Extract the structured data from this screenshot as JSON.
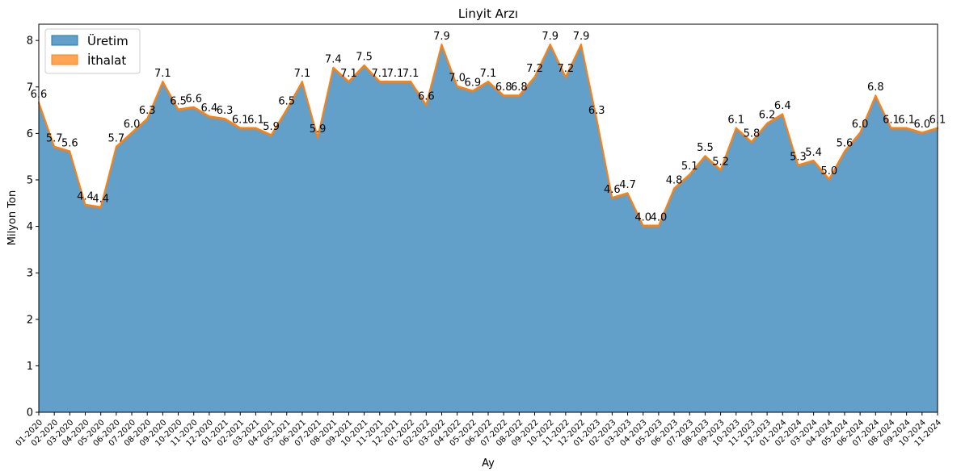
{
  "chart_data": {
    "type": "area",
    "title": "Linyit Arzı",
    "xlabel": "Ay",
    "ylabel": "Milyon Ton",
    "ylim": [
      0,
      8.35
    ],
    "yticks": [
      0,
      1,
      2,
      3,
      4,
      5,
      6,
      7,
      8
    ],
    "stacked": true,
    "grid": false,
    "legend_position": "upper-left",
    "categories": [
      "01-2020",
      "02-2020",
      "03-2020",
      "04-2020",
      "05-2020",
      "06-2020",
      "07-2020",
      "08-2020",
      "09-2020",
      "10-2020",
      "11-2020",
      "12-2020",
      "01-2021",
      "02-2021",
      "03-2021",
      "04-2021",
      "05-2021",
      "06-2021",
      "07-2021",
      "08-2021",
      "09-2021",
      "10-2021",
      "11-2021",
      "12-2021",
      "01-2022",
      "02-2022",
      "03-2022",
      "04-2022",
      "05-2022",
      "06-2022",
      "07-2022",
      "08-2022",
      "09-2022",
      "10-2022",
      "11-2022",
      "12-2022",
      "01-2023",
      "02-2023",
      "03-2023",
      "04-2023",
      "05-2023",
      "06-2023",
      "07-2023",
      "08-2023",
      "09-2023",
      "10-2023",
      "11-2023",
      "12-2023",
      "01-2024",
      "02-2024",
      "03-2024",
      "04-2024",
      "05-2024",
      "06-2024",
      "07-2024",
      "08-2024",
      "09-2024",
      "10-2024",
      "11-2024"
    ],
    "series": [
      {
        "name": "Üretim",
        "color": "#1f77b4",
        "values": [
          6.65,
          5.7,
          5.6,
          4.45,
          4.4,
          5.7,
          6.0,
          6.3,
          7.1,
          6.5,
          6.55,
          6.35,
          6.3,
          6.1,
          6.1,
          5.95,
          6.5,
          7.1,
          5.9,
          7.4,
          7.1,
          7.45,
          7.1,
          7.1,
          7.1,
          6.6,
          7.9,
          7.0,
          6.9,
          7.1,
          6.8,
          6.8,
          7.2,
          7.9,
          7.2,
          7.9,
          6.3,
          4.6,
          4.7,
          4.0,
          4.0,
          4.8,
          5.1,
          5.5,
          5.2,
          6.1,
          5.8,
          6.2,
          6.4,
          5.3,
          5.4,
          5.0,
          5.6,
          6.0,
          6.8,
          6.1,
          6.1,
          6.0,
          6.1
        ]
      },
      {
        "name": "İthalat",
        "color": "#ff7f0e",
        "values": [
          0.02,
          0.02,
          0.02,
          0.02,
          0.02,
          0.02,
          0.02,
          0.02,
          0.02,
          0.02,
          0.02,
          0.02,
          0.02,
          0.02,
          0.02,
          0.02,
          0.02,
          0.02,
          0.02,
          0.02,
          0.02,
          0.02,
          0.02,
          0.02,
          0.02,
          0.02,
          0.02,
          0.02,
          0.02,
          0.02,
          0.02,
          0.02,
          0.02,
          0.02,
          0.02,
          0.02,
          0.02,
          0.02,
          0.02,
          0.02,
          0.02,
          0.02,
          0.02,
          0.02,
          0.02,
          0.02,
          0.02,
          0.02,
          0.02,
          0.02,
          0.02,
          0.02,
          0.02,
          0.02,
          0.02,
          0.02,
          0.02,
          0.02,
          0.02
        ]
      }
    ],
    "data_labels": [
      "6.6",
      "5.7",
      "5.6",
      "4.4",
      "4.4",
      "5.7",
      "6.0",
      "6.3",
      "7.1",
      "6.5",
      "6.6",
      "6.4",
      "6.3",
      "6.1",
      "6.1",
      "5.9",
      "6.5",
      "7.1",
      "5.9",
      "7.4",
      "7.1",
      "7.5",
      "7.1",
      "7.1",
      "7.1",
      "6.6",
      "7.9",
      "7.0",
      "6.9",
      "7.1",
      "6.8",
      "6.8",
      "7.2",
      "7.9",
      "7.2",
      "7.9",
      "6.3",
      "4.6",
      "4.7",
      "4.0",
      "4.0",
      "4.8",
      "5.1",
      "5.5",
      "5.2",
      "6.1",
      "5.8",
      "6.2",
      "6.4",
      "5.3",
      "5.4",
      "5.0",
      "5.6",
      "6.0",
      "6.8",
      "6.1",
      "6.1",
      "6.0",
      "6.1"
    ]
  }
}
